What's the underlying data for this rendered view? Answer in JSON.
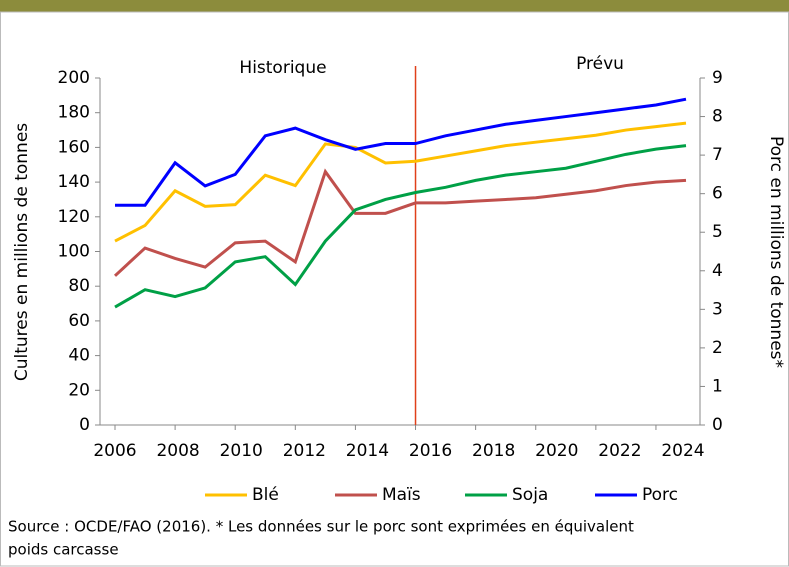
{
  "chart_data": {
    "type": "line",
    "annotations": [
      "Historique",
      "Prévu"
    ],
    "ylabel": "Cultures en millions de tonnes",
    "y2label": "Porc en millions de tonnes*",
    "source": "Source : OCDE/FAO (2016). * Les données sur le porc sont exprimées en équivalent",
    "source2": "poids carcasse",
    "x": [
      2006,
      2007,
      2008,
      2009,
      2010,
      2011,
      2012,
      2013,
      2014,
      2015,
      2016,
      2017,
      2018,
      2019,
      2020,
      2021,
      2022,
      2023,
      2024,
      2025
    ],
    "xlim": [
      2006,
      2025
    ],
    "xticks": [
      2006,
      2008,
      2010,
      2012,
      2014,
      2016,
      2018,
      2020,
      2022,
      2024
    ],
    "ylim": [
      0,
      200
    ],
    "yticks": [
      0,
      20,
      40,
      60,
      80,
      100,
      120,
      140,
      160,
      180,
      200
    ],
    "y2lim": [
      0,
      9
    ],
    "y2ticks": [
      0,
      1,
      2,
      3,
      4,
      5,
      6,
      7,
      8,
      9
    ],
    "divider": 2016,
    "series": [
      {
        "name": "Blé",
        "color": "#ffc000",
        "values": [
          106,
          115,
          135,
          126,
          127,
          144,
          138,
          162,
          160,
          151,
          152,
          155,
          158,
          161,
          163,
          165,
          167,
          170,
          172,
          174
        ]
      },
      {
        "name": "Maïs",
        "color": "#c0504d",
        "values": [
          86,
          102,
          96,
          91,
          105,
          106,
          94,
          146,
          122,
          122,
          128,
          128,
          129,
          130,
          131,
          133,
          135,
          138,
          140,
          141
        ]
      },
      {
        "name": "Soja",
        "color": "#00a046",
        "values": [
          68,
          78,
          74,
          79,
          94,
          97,
          81,
          106,
          124,
          130,
          134,
          137,
          141,
          144,
          146,
          148,
          152,
          156,
          159,
          161
        ]
      },
      {
        "name": "Porc",
        "color": "#0000ff",
        "axis": "y2",
        "values": [
          5.7,
          5.7,
          6.8,
          6.2,
          6.5,
          7.5,
          7.7,
          7.4,
          7.15,
          7.3,
          7.3,
          7.5,
          7.65,
          7.8,
          7.9,
          8.0,
          8.1,
          8.2,
          8.3,
          8.45
        ]
      }
    ]
  }
}
